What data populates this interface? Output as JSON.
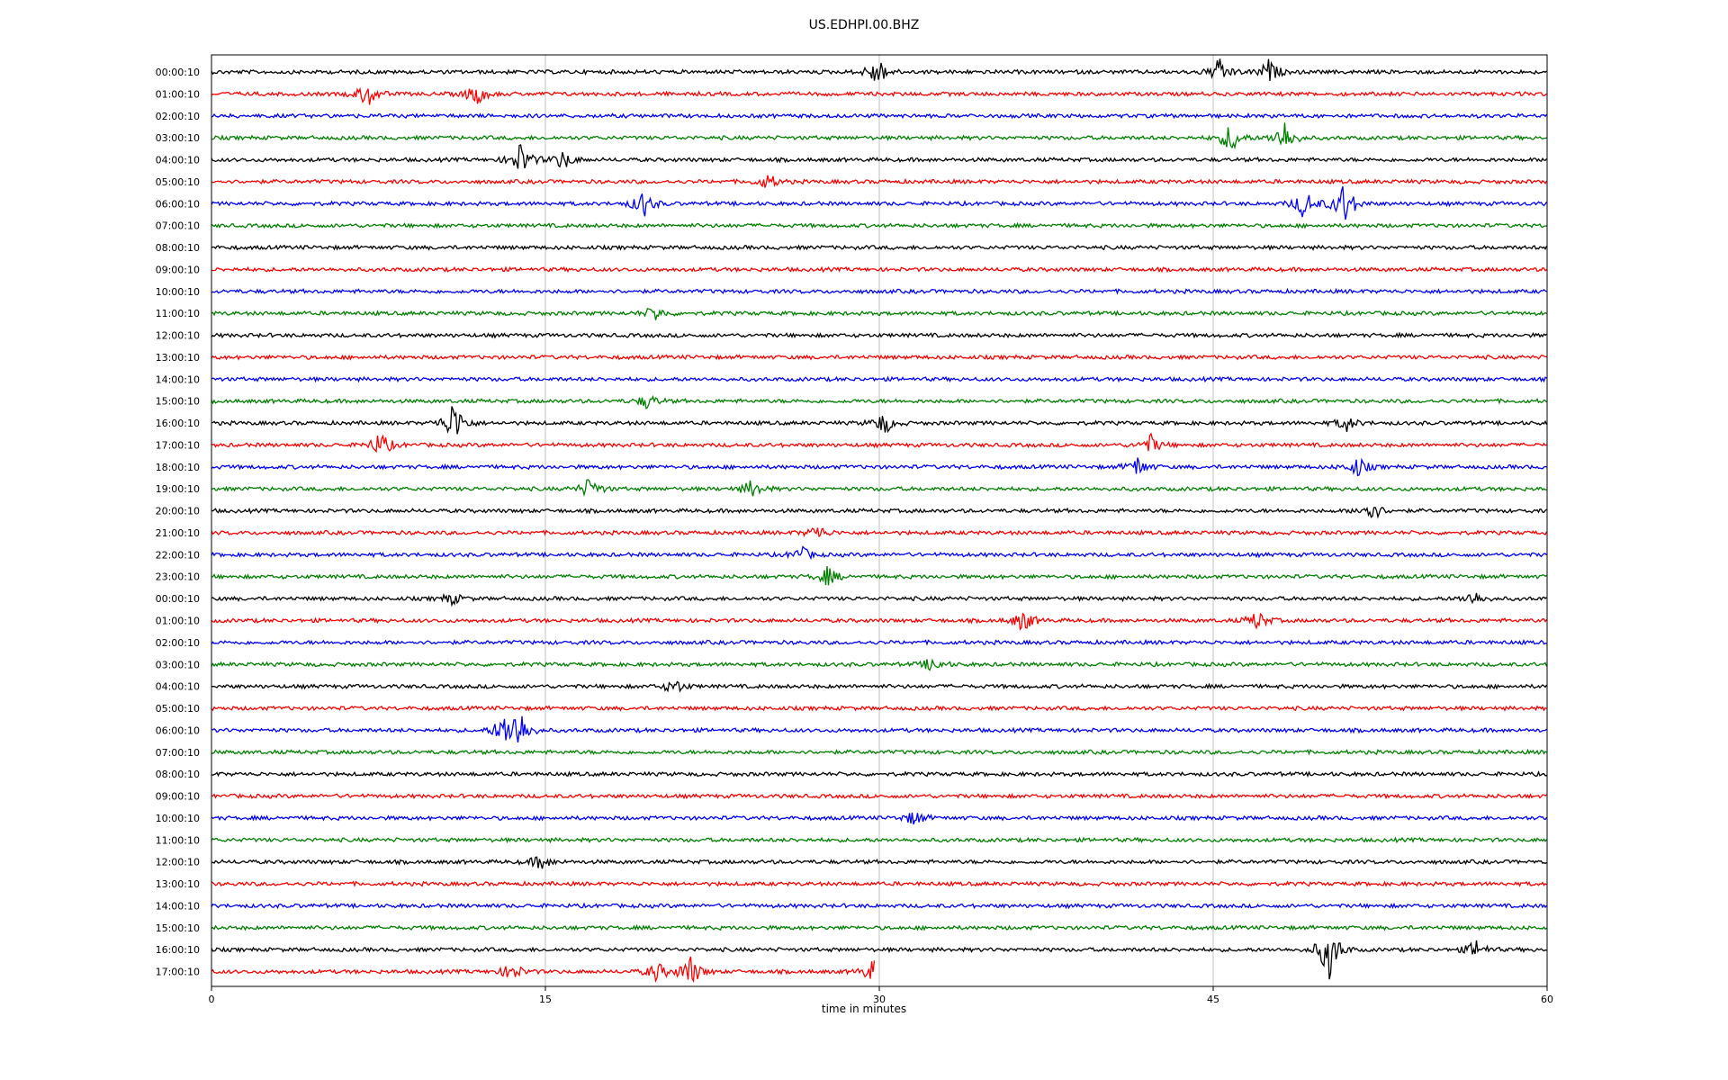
{
  "chart_data": {
    "type": "line",
    "title": "US.EDHPI.00.BHZ",
    "xlabel": "time in minutes",
    "ylabel": "",
    "xlim": [
      0,
      60
    ],
    "xticks": [
      0,
      15,
      30,
      45,
      60
    ],
    "grid": "vertical lines at x ticks",
    "trace_colors": [
      "#000000",
      "#ff0000",
      "#0000ff",
      "#008000"
    ],
    "row_labels": [
      "00:00:10",
      "01:00:10",
      "02:00:10",
      "03:00:10",
      "04:00:10",
      "05:00:10",
      "06:00:10",
      "07:00:10",
      "08:00:10",
      "09:00:10",
      "10:00:10",
      "11:00:10",
      "12:00:10",
      "13:00:10",
      "14:00:10",
      "15:00:10",
      "16:00:10",
      "17:00:10",
      "18:00:10",
      "19:00:10",
      "20:00:10",
      "21:00:10",
      "22:00:10",
      "23:00:10",
      "00:00:10",
      "01:00:10",
      "02:00:10",
      "03:00:10",
      "04:00:10",
      "05:00:10",
      "06:00:10",
      "07:00:10",
      "08:00:10",
      "09:00:10",
      "10:00:10",
      "11:00:10",
      "12:00:10",
      "13:00:10",
      "14:00:10",
      "15:00:10",
      "16:00:10",
      "17:00:10"
    ],
    "last_row_end_minute": 29.8,
    "events": [
      {
        "row": 0,
        "minute": 29.9,
        "amp": 0.8
      },
      {
        "row": 0,
        "minute": 45.3,
        "amp": 0.7
      },
      {
        "row": 0,
        "minute": 47.5,
        "amp": 0.6
      },
      {
        "row": 1,
        "minute": 7.0,
        "amp": 0.7
      },
      {
        "row": 1,
        "minute": 11.9,
        "amp": 0.6
      },
      {
        "row": 3,
        "minute": 45.8,
        "amp": 0.8
      },
      {
        "row": 3,
        "minute": 48.2,
        "amp": 0.9
      },
      {
        "row": 4,
        "minute": 13.9,
        "amp": 0.9
      },
      {
        "row": 4,
        "minute": 15.8,
        "amp": 0.5
      },
      {
        "row": 5,
        "minute": 25.0,
        "amp": 0.4
      },
      {
        "row": 6,
        "minute": 19.4,
        "amp": 0.7
      },
      {
        "row": 6,
        "minute": 49.1,
        "amp": 0.8
      },
      {
        "row": 6,
        "minute": 50.9,
        "amp": 1.2
      },
      {
        "row": 11,
        "minute": 19.9,
        "amp": 0.4
      },
      {
        "row": 15,
        "minute": 19.6,
        "amp": 0.4
      },
      {
        "row": 16,
        "minute": 10.9,
        "amp": 1.2
      },
      {
        "row": 16,
        "minute": 30.2,
        "amp": 0.6
      },
      {
        "row": 16,
        "minute": 51.0,
        "amp": 0.4
      },
      {
        "row": 17,
        "minute": 7.6,
        "amp": 0.7
      },
      {
        "row": 17,
        "minute": 42.2,
        "amp": 0.5
      },
      {
        "row": 18,
        "minute": 41.6,
        "amp": 0.5
      },
      {
        "row": 18,
        "minute": 51.5,
        "amp": 0.5
      },
      {
        "row": 19,
        "minute": 17.0,
        "amp": 0.6
      },
      {
        "row": 19,
        "minute": 24.3,
        "amp": 0.5
      },
      {
        "row": 20,
        "minute": 52.1,
        "amp": 0.6
      },
      {
        "row": 21,
        "minute": 27.2,
        "amp": 0.4
      },
      {
        "row": 22,
        "minute": 26.5,
        "amp": 0.4
      },
      {
        "row": 23,
        "minute": 27.7,
        "amp": 0.5
      },
      {
        "row": 24,
        "minute": 10.8,
        "amp": 0.3
      },
      {
        "row": 24,
        "minute": 56.7,
        "amp": 0.4
      },
      {
        "row": 25,
        "minute": 36.5,
        "amp": 0.6
      },
      {
        "row": 25,
        "minute": 47.0,
        "amp": 0.5
      },
      {
        "row": 27,
        "minute": 32.4,
        "amp": 0.4
      },
      {
        "row": 28,
        "minute": 20.8,
        "amp": 0.4
      },
      {
        "row": 30,
        "minute": 13.8,
        "amp": 1.2
      },
      {
        "row": 30,
        "minute": 13.1,
        "amp": 0.7
      },
      {
        "row": 34,
        "minute": 31.6,
        "amp": 0.4
      },
      {
        "row": 36,
        "minute": 14.8,
        "amp": 0.4
      },
      {
        "row": 40,
        "minute": 50.2,
        "amp": 1.6
      },
      {
        "row": 40,
        "minute": 56.8,
        "amp": 0.5
      },
      {
        "row": 41,
        "minute": 13.5,
        "amp": 0.5
      },
      {
        "row": 41,
        "minute": 20.0,
        "amp": 0.5
      },
      {
        "row": 41,
        "minute": 21.5,
        "amp": 0.9
      },
      {
        "row": 41,
        "minute": 29.7,
        "amp": 0.6
      }
    ]
  }
}
